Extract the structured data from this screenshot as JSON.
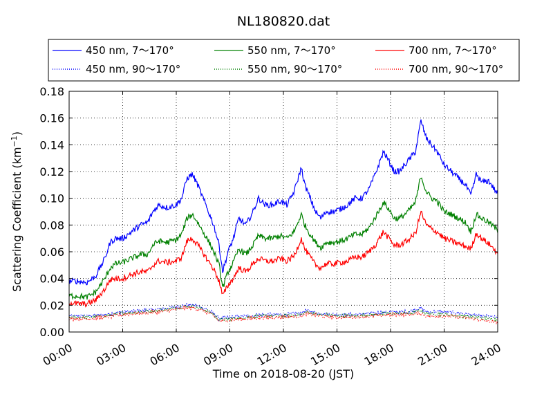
{
  "chart_data": {
    "type": "line",
    "title": "NL180820.dat",
    "xlabel": "Time on 2018-08-20 (JST)",
    "ylabel": "Scattering Coefficient (km",
    "ylabel_exponent": "−1",
    "ylabel_close": ")",
    "xlim": [
      0,
      24
    ],
    "ylim": [
      0,
      0.18
    ],
    "x_unit": "hours",
    "x_ticks": [
      0,
      3,
      6,
      9,
      12,
      15,
      18,
      21,
      24
    ],
    "x_tick_labels": [
      "00:00",
      "03:00",
      "06:00",
      "09:00",
      "12:00",
      "15:00",
      "18:00",
      "21:00",
      "24:00"
    ],
    "y_ticks": [
      0,
      0.02,
      0.04,
      0.06,
      0.08,
      0.1,
      0.12,
      0.14,
      0.16,
      0.18
    ],
    "y_tick_labels": [
      "0.00",
      "0.02",
      "0.04",
      "0.06",
      "0.08",
      "0.10",
      "0.12",
      "0.14",
      "0.16",
      "0.18"
    ],
    "grid": true,
    "legend_position": "top",
    "series": [
      {
        "name": "450 nm, 7～170°",
        "color": "#0000ff",
        "style": "solid",
        "x": [
          0,
          0.5,
          1,
          1.5,
          2,
          2.3,
          2.6,
          3,
          3.5,
          4,
          4.4,
          4.7,
          5,
          5.5,
          6,
          6.3,
          6.6,
          6.9,
          7.2,
          7.5,
          7.8,
          8.1,
          8.4,
          8.6,
          8.9,
          9.2,
          9.5,
          9.9,
          10.3,
          10.6,
          11,
          11.4,
          11.8,
          12.2,
          12.6,
          13,
          13.2,
          13.5,
          13.8,
          14.1,
          14.4,
          14.8,
          15.2,
          15.6,
          16,
          16.4,
          16.8,
          17.2,
          17.6,
          17.9,
          18.2,
          18.5,
          18.8,
          19.1,
          19.4,
          19.7,
          20,
          20.3,
          20.6,
          21,
          21.4,
          21.8,
          22.2,
          22.5,
          22.8,
          23.1,
          23.5,
          24
        ],
        "y": [
          0.038,
          0.038,
          0.037,
          0.042,
          0.055,
          0.067,
          0.07,
          0.07,
          0.075,
          0.08,
          0.082,
          0.09,
          0.095,
          0.093,
          0.095,
          0.1,
          0.115,
          0.118,
          0.11,
          0.1,
          0.09,
          0.08,
          0.065,
          0.045,
          0.06,
          0.07,
          0.085,
          0.08,
          0.09,
          0.1,
          0.095,
          0.095,
          0.098,
          0.095,
          0.105,
          0.123,
          0.11,
          0.1,
          0.09,
          0.085,
          0.09,
          0.09,
          0.092,
          0.095,
          0.1,
          0.1,
          0.107,
          0.12,
          0.135,
          0.128,
          0.12,
          0.12,
          0.125,
          0.13,
          0.135,
          0.158,
          0.145,
          0.14,
          0.135,
          0.125,
          0.12,
          0.115,
          0.11,
          0.102,
          0.118,
          0.112,
          0.113,
          0.103
        ]
      },
      {
        "name": "450 nm, 90～170°",
        "color": "#0000ff",
        "style": "dotted",
        "x": [
          0,
          1,
          2,
          3,
          4,
          5,
          6,
          6.5,
          7,
          7.5,
          8,
          8.4,
          9,
          10,
          11,
          12,
          13,
          13.3,
          14,
          15,
          16,
          17,
          18,
          19,
          19.7,
          20,
          21,
          22,
          23,
          24
        ],
        "y": [
          0.012,
          0.012,
          0.013,
          0.015,
          0.016,
          0.017,
          0.019,
          0.02,
          0.02,
          0.018,
          0.015,
          0.01,
          0.011,
          0.012,
          0.013,
          0.013,
          0.014,
          0.016,
          0.014,
          0.013,
          0.013,
          0.014,
          0.015,
          0.015,
          0.018,
          0.015,
          0.015,
          0.014,
          0.012,
          0.011
        ]
      },
      {
        "name": "550 nm, 7～170°",
        "color": "#008000",
        "style": "solid",
        "x": [
          0,
          0.5,
          1,
          1.5,
          2,
          2.3,
          2.6,
          3,
          3.5,
          4,
          4.4,
          4.7,
          5,
          5.5,
          6,
          6.3,
          6.6,
          6.9,
          7.2,
          7.5,
          7.8,
          8.1,
          8.4,
          8.6,
          8.9,
          9.2,
          9.5,
          9.9,
          10.3,
          10.6,
          11,
          11.4,
          11.8,
          12.2,
          12.6,
          13,
          13.2,
          13.5,
          13.8,
          14.1,
          14.4,
          14.8,
          15.2,
          15.6,
          16,
          16.4,
          16.8,
          17.2,
          17.6,
          17.9,
          18.2,
          18.5,
          18.8,
          19.1,
          19.4,
          19.7,
          20,
          20.3,
          20.6,
          21,
          21.4,
          21.8,
          22.2,
          22.5,
          22.8,
          23.1,
          23.5,
          24
        ],
        "y": [
          0.027,
          0.027,
          0.026,
          0.03,
          0.04,
          0.048,
          0.051,
          0.052,
          0.055,
          0.058,
          0.058,
          0.065,
          0.068,
          0.067,
          0.069,
          0.073,
          0.085,
          0.088,
          0.082,
          0.075,
          0.068,
          0.06,
          0.05,
          0.033,
          0.045,
          0.052,
          0.062,
          0.058,
          0.065,
          0.072,
          0.07,
          0.07,
          0.072,
          0.07,
          0.075,
          0.088,
          0.08,
          0.073,
          0.067,
          0.063,
          0.067,
          0.067,
          0.068,
          0.07,
          0.073,
          0.073,
          0.078,
          0.087,
          0.097,
          0.092,
          0.085,
          0.085,
          0.088,
          0.092,
          0.097,
          0.117,
          0.105,
          0.1,
          0.098,
          0.09,
          0.088,
          0.085,
          0.082,
          0.075,
          0.088,
          0.085,
          0.082,
          0.076
        ]
      },
      {
        "name": "550 nm, 90～170°",
        "color": "#008000",
        "style": "dotted",
        "x": [
          0,
          1,
          2,
          3,
          4,
          5,
          6,
          6.5,
          7,
          7.5,
          8,
          8.4,
          9,
          10,
          11,
          12,
          13,
          13.3,
          14,
          15,
          16,
          17,
          18,
          19,
          19.7,
          20,
          21,
          22,
          23,
          24
        ],
        "y": [
          0.011,
          0.011,
          0.012,
          0.014,
          0.015,
          0.016,
          0.018,
          0.019,
          0.019,
          0.017,
          0.014,
          0.009,
          0.01,
          0.011,
          0.012,
          0.012,
          0.013,
          0.015,
          0.013,
          0.012,
          0.012,
          0.013,
          0.014,
          0.014,
          0.016,
          0.014,
          0.013,
          0.012,
          0.011,
          0.009
        ]
      },
      {
        "name": "700 nm, 7～170°",
        "color": "#ff0000",
        "style": "solid",
        "x": [
          0,
          0.5,
          1,
          1.5,
          2,
          2.3,
          2.6,
          3,
          3.5,
          4,
          4.4,
          4.7,
          5,
          5.5,
          6,
          6.3,
          6.6,
          6.9,
          7.2,
          7.5,
          7.8,
          8.1,
          8.4,
          8.6,
          8.9,
          9.2,
          9.5,
          9.9,
          10.3,
          10.6,
          11,
          11.4,
          11.8,
          12.2,
          12.6,
          13,
          13.2,
          13.5,
          13.8,
          14.1,
          14.4,
          14.8,
          15.2,
          15.6,
          16,
          16.4,
          16.8,
          17.2,
          17.6,
          17.9,
          18.2,
          18.5,
          18.8,
          19.1,
          19.4,
          19.7,
          20,
          20.3,
          20.6,
          21,
          21.4,
          21.8,
          22.2,
          22.5,
          22.8,
          23.1,
          23.5,
          24
        ],
        "y": [
          0.022,
          0.021,
          0.021,
          0.024,
          0.032,
          0.039,
          0.04,
          0.04,
          0.043,
          0.045,
          0.045,
          0.05,
          0.053,
          0.052,
          0.053,
          0.056,
          0.068,
          0.07,
          0.065,
          0.059,
          0.053,
          0.047,
          0.038,
          0.027,
          0.035,
          0.04,
          0.048,
          0.045,
          0.051,
          0.055,
          0.053,
          0.053,
          0.055,
          0.053,
          0.057,
          0.07,
          0.062,
          0.056,
          0.05,
          0.048,
          0.051,
          0.051,
          0.052,
          0.053,
          0.056,
          0.056,
          0.06,
          0.066,
          0.075,
          0.07,
          0.065,
          0.065,
          0.067,
          0.07,
          0.074,
          0.09,
          0.08,
          0.077,
          0.075,
          0.07,
          0.068,
          0.066,
          0.064,
          0.062,
          0.074,
          0.07,
          0.066,
          0.059
        ]
      },
      {
        "name": "700 nm, 90～170°",
        "color": "#ff0000",
        "style": "dotted",
        "x": [
          0,
          1,
          2,
          3,
          4,
          5,
          6,
          6.5,
          7,
          7.5,
          8,
          8.4,
          9,
          10,
          11,
          12,
          13,
          13.3,
          14,
          15,
          16,
          17,
          18,
          19,
          19.7,
          20,
          21,
          22,
          23,
          24
        ],
        "y": [
          0.01,
          0.01,
          0.011,
          0.013,
          0.014,
          0.015,
          0.017,
          0.018,
          0.018,
          0.016,
          0.013,
          0.008,
          0.009,
          0.01,
          0.011,
          0.011,
          0.012,
          0.014,
          0.012,
          0.011,
          0.011,
          0.012,
          0.013,
          0.013,
          0.014,
          0.012,
          0.012,
          0.011,
          0.009,
          0.007
        ]
      }
    ]
  }
}
